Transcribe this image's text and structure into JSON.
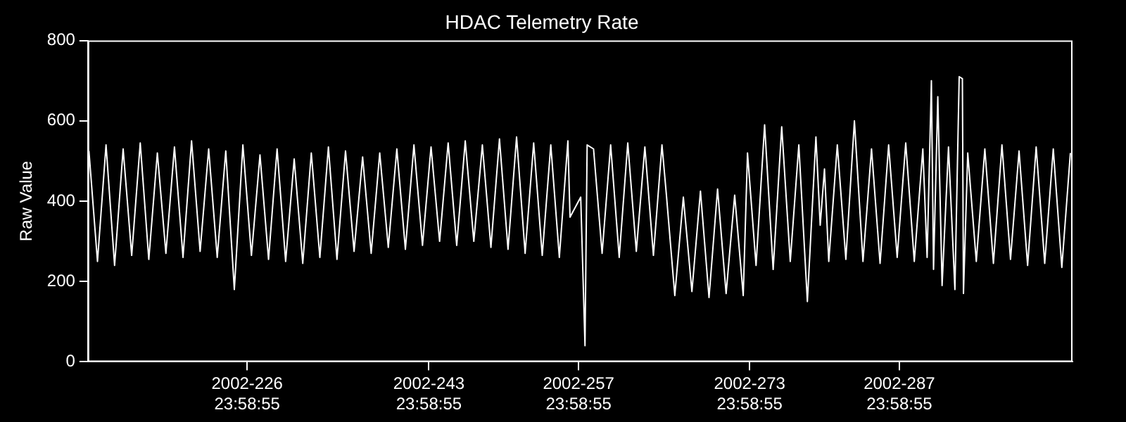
{
  "chart_data": {
    "type": "line",
    "title": "HDAC Telemetry Rate",
    "ylabel": "Raw Value",
    "x": [
      "2002-07-31T04:48",
      "2002-08-01T00:00",
      "2002-08-01T19:12",
      "2002-08-02T14:24",
      "2002-08-03T09:36",
      "2002-08-04T04:48",
      "2002-08-05T00:00",
      "2002-08-05T19:12",
      "2002-08-06T14:24",
      "2002-08-07T09:36",
      "2002-08-08T04:48",
      "2002-08-09T00:00",
      "2002-08-09T19:12",
      "2002-08-10T14:24",
      "2002-08-11T09:36",
      "2002-08-12T04:48",
      "2002-08-13T00:00",
      "2002-08-13T19:12",
      "2002-08-14T14:24",
      "2002-08-15T09:36",
      "2002-08-16T04:48",
      "2002-08-17T00:00",
      "2002-08-17T19:12",
      "2002-08-18T14:24",
      "2002-08-19T09:36",
      "2002-08-20T04:48",
      "2002-08-21T00:00",
      "2002-08-21T19:12",
      "2002-08-22T14:24",
      "2002-08-23T09:36",
      "2002-08-24T04:48",
      "2002-08-25T00:00",
      "2002-08-25T19:12",
      "2002-08-26T14:24",
      "2002-08-27T09:36",
      "2002-08-28T04:48",
      "2002-08-29T00:00",
      "2002-08-29T19:12",
      "2002-08-30T14:24",
      "2002-08-31T09:36",
      "2002-09-01T04:48",
      "2002-09-02T00:00",
      "2002-09-02T19:12",
      "2002-09-03T14:24",
      "2002-09-04T09:36",
      "2002-09-05T04:48",
      "2002-09-06T00:00",
      "2002-09-06T19:12",
      "2002-09-07T14:24",
      "2002-09-08T09:36",
      "2002-09-09T04:48",
      "2002-09-10T00:00",
      "2002-09-10T19:12",
      "2002-09-11T14:24",
      "2002-09-12T09:36",
      "2002-09-13T04:48",
      "2002-09-14T00:00",
      "2002-09-14T04:48",
      "2002-09-15T04:48",
      "2002-09-15T14:24",
      "2002-09-15T19:12",
      "2002-09-16T09:36",
      "2002-09-17T04:48",
      "2002-09-18T00:00",
      "2002-09-18T19:12",
      "2002-09-19T14:24",
      "2002-09-20T09:36",
      "2002-09-21T04:48",
      "2002-09-22T00:00",
      "2002-09-22T19:12",
      "2002-09-23T04:48",
      "2002-09-24T00:00",
      "2002-09-24T19:12",
      "2002-09-25T14:24",
      "2002-09-26T09:36",
      "2002-09-27T04:48",
      "2002-09-28T00:00",
      "2002-09-28T19:12",
      "2002-09-29T14:24",
      "2002-09-30T09:36",
      "2002-09-30T19:12",
      "2002-10-01T14:24",
      "2002-10-02T09:36",
      "2002-10-03T04:48",
      "2002-10-04T00:00",
      "2002-10-04T19:12",
      "2002-10-05T14:24",
      "2002-10-06T09:36",
      "2002-10-07T04:48",
      "2002-10-07T14:24",
      "2002-10-08T00:00",
      "2002-10-08T09:36",
      "2002-10-09T04:48",
      "2002-10-10T00:00",
      "2002-10-10T19:12",
      "2002-10-11T14:24",
      "2002-10-12T09:36",
      "2002-10-13T04:48",
      "2002-10-14T00:00",
      "2002-10-14T19:12",
      "2002-10-15T14:24",
      "2002-10-16T09:36",
      "2002-10-17T04:48",
      "2002-10-17T14:24",
      "2002-10-18T00:00",
      "2002-10-18T04:48",
      "2002-10-18T14:24",
      "2002-10-19T00:00",
      "2002-10-19T14:24",
      "2002-10-20T04:48",
      "2002-10-20T14:24",
      "2002-10-20T21:36",
      "2002-10-21T00:00",
      "2002-10-21T09:36",
      "2002-10-22T04:48",
      "2002-10-23T00:00",
      "2002-10-23T19:12",
      "2002-10-24T14:24",
      "2002-10-25T09:36",
      "2002-10-26T04:48",
      "2002-10-27T00:00",
      "2002-10-27T19:12",
      "2002-10-28T14:24",
      "2002-10-29T09:36",
      "2002-10-30T04:48",
      "2002-10-31T00:00"
    ],
    "series": [
      {
        "color": "#ffffff",
        "values": [
          525,
          250,
          540,
          240,
          530,
          265,
          545,
          255,
          520,
          270,
          535,
          260,
          550,
          275,
          530,
          260,
          525,
          180,
          540,
          265,
          515,
          255,
          530,
          250,
          505,
          245,
          520,
          260,
          535,
          255,
          525,
          275,
          510,
          270,
          520,
          285,
          530,
          280,
          540,
          290,
          535,
          300,
          545,
          290,
          550,
          300,
          540,
          285,
          555,
          280,
          560,
          270,
          545,
          265,
          540,
          260,
          550,
          360,
          410,
          40,
          540,
          530,
          270,
          540,
          260,
          545,
          275,
          535,
          265,
          540,
          420,
          165,
          410,
          175,
          425,
          160,
          430,
          170,
          415,
          165,
          520,
          240,
          590,
          230,
          585,
          250,
          540,
          150,
          560,
          340,
          480,
          250,
          540,
          255,
          600,
          250,
          530,
          245,
          540,
          260,
          545,
          250,
          530,
          260,
          700,
          230,
          660,
          190,
          535,
          180,
          710,
          705,
          170,
          520,
          250,
          530,
          245,
          540,
          255,
          525,
          240,
          535,
          245,
          530,
          235,
          520
        ]
      }
    ],
    "xlim": [
      "2002-07-31T02:24",
      "2002-10-31T04:48"
    ],
    "xticks": [
      {
        "value": "2002-08-14T23:59",
        "label": "2002-226\n23:58:55"
      },
      {
        "value": "2002-08-31T23:59",
        "label": "2002-243\n23:58:55"
      },
      {
        "value": "2002-09-14T23:59",
        "label": "2002-257\n23:58:55"
      },
      {
        "value": "2002-09-30T23:59",
        "label": "2002-273\n23:58:55"
      },
      {
        "value": "2002-10-14T23:59",
        "label": "2002-287\n23:58:55"
      }
    ],
    "ylim": [
      0,
      800
    ],
    "yticks": [
      0,
      200,
      400,
      600,
      800
    ],
    "grid": false,
    "legend": false,
    "marker": "none",
    "line_style": "solid"
  }
}
